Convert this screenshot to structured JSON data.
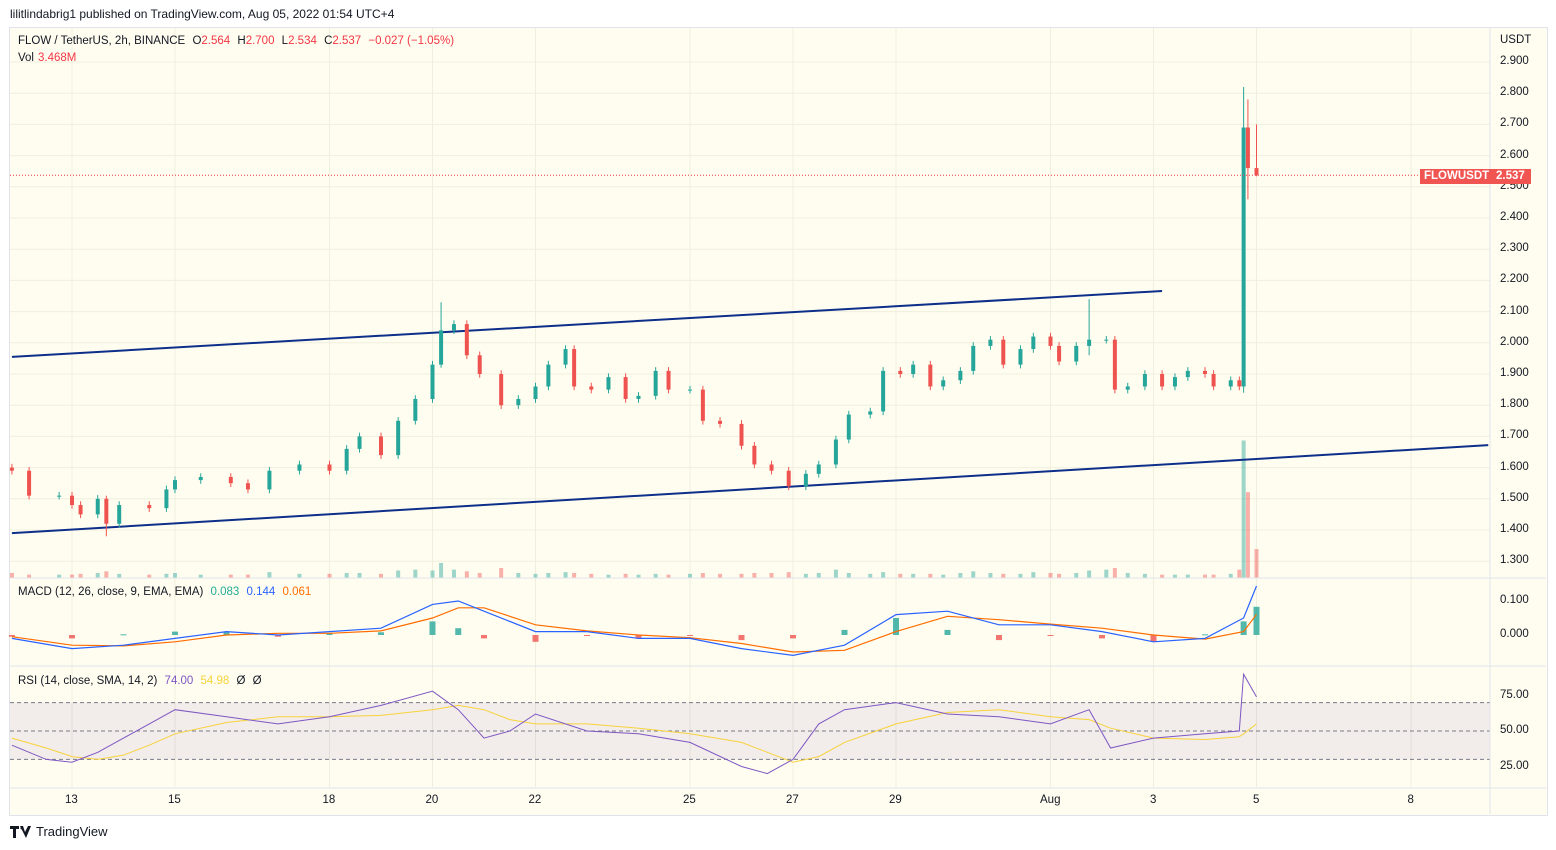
{
  "published": "lilitlindabrig1 published on TradingView.com, Aug 05, 2022 01:54 UTC+4",
  "legend": {
    "symbol": "FLOW / TetherUS, 2h, BINANCE",
    "o_label": "O",
    "o": "2.564",
    "h_label": "H",
    "h": "2.700",
    "l_label": "L",
    "l": "2.534",
    "c_label": "C",
    "c": "2.537",
    "change": "−0.027 (−1.05%)",
    "vol_label": "Vol",
    "vol": "3.468M"
  },
  "macd_legend": {
    "label": "MACD (12, 26, close, 9, EMA, EMA)",
    "hist": "0.083",
    "macd": "0.144",
    "signal": "0.061"
  },
  "rsi_legend": {
    "label": "RSI (14, close, SMA, 14, 2)",
    "rsi": "74.00",
    "sma": "54.98",
    "e1": "Ø",
    "e2": "Ø"
  },
  "price_axis": {
    "unit": "USDT",
    "ticks": [
      "2.900",
      "2.800",
      "2.700",
      "2.600",
      "2.500",
      "2.400",
      "2.300",
      "2.200",
      "2.100",
      "2.000",
      "1.900",
      "1.800",
      "1.700",
      "1.600",
      "1.500",
      "1.400",
      "1.300"
    ]
  },
  "last_price": {
    "symbol": "FLOWUSDT",
    "value": "2.537"
  },
  "macd_axis": {
    "ticks": [
      "0.100",
      "0.000"
    ]
  },
  "rsi_axis": {
    "ticks": [
      "75.00",
      "50.00",
      "25.00"
    ],
    "band": [
      30,
      70
    ]
  },
  "time_axis": [
    {
      "label": "13",
      "date": "07-13"
    },
    {
      "label": "15",
      "date": "07-15"
    },
    {
      "label": "18",
      "date": "07-18"
    },
    {
      "label": "20",
      "date": "07-20"
    },
    {
      "label": "22",
      "date": "07-22"
    },
    {
      "label": "25",
      "date": "07-25"
    },
    {
      "label": "27",
      "date": "07-27"
    },
    {
      "label": "29",
      "date": "07-29"
    },
    {
      "label": "Aug",
      "date": "08-01"
    },
    {
      "label": "3",
      "date": "08-03"
    },
    {
      "label": "5",
      "date": "08-05"
    },
    {
      "label": "8",
      "date": "08-08"
    }
  ],
  "footer": {
    "brand": "TradingView"
  },
  "colors": {
    "up": "#26a69a",
    "down": "#ef5350",
    "trendline": "#0d2f8a",
    "macd": "#2962ff",
    "signal": "#ff6d00",
    "rsi": "#7e57c2",
    "rsi_sma": "#f7d33b",
    "background": "#fffdf0"
  },
  "chart_data": {
    "type": "candlestick",
    "symbol": "FLOWUSDT",
    "interval": "2h",
    "ylim": [
      1.25,
      2.95
    ],
    "candles": [
      [
        "07-11 20:00",
        1.59,
        0.6
      ],
      [
        "07-12 04:00",
        1.51,
        0.4
      ],
      [
        "07-12 18:00",
        1.51,
        0.4
      ],
      [
        "07-13 00:00",
        1.48,
        0.4
      ],
      [
        "07-13 04:00",
        1.45,
        0.5
      ],
      [
        "07-13 12:00",
        1.5,
        0.6
      ],
      [
        "07-13 16:00",
        1.42,
        0.8,
        1.51,
        1.38
      ],
      [
        "07-13 22:00",
        1.48,
        0.5
      ],
      [
        "07-14 12:00",
        1.47,
        0.4
      ],
      [
        "07-14 20:00",
        1.53,
        0.5
      ],
      [
        "07-15 00:00",
        1.56,
        0.6
      ],
      [
        "07-15 12:00",
        1.57,
        0.4
      ],
      [
        "07-16 02:00",
        1.55,
        0.4
      ],
      [
        "07-16 10:00",
        1.53,
        0.4
      ],
      [
        "07-16 20:00",
        1.59,
        0.7
      ],
      [
        "07-17 10:00",
        1.61,
        0.5
      ],
      [
        "07-18 00:00",
        1.59,
        0.5
      ],
      [
        "07-18 08:00",
        1.66,
        0.6
      ],
      [
        "07-18 14:00",
        1.7,
        0.6
      ],
      [
        "07-19 00:00",
        1.64,
        0.5
      ],
      [
        "07-19 08:00",
        1.75,
        0.9
      ],
      [
        "07-19 16:00",
        1.82,
        1.0
      ],
      [
        "07-20 00:00",
        1.93,
        0.9
      ],
      [
        "07-20 04:00",
        2.04,
        1.8,
        2.13,
        1.92
      ],
      [
        "07-20 10:00",
        2.06,
        1.0
      ],
      [
        "07-20 16:00",
        1.96,
        0.8
      ],
      [
        "07-20 22:00",
        1.9,
        0.6
      ],
      [
        "07-21 08:00",
        1.8,
        1.2
      ],
      [
        "07-21 16:00",
        1.82,
        0.6
      ],
      [
        "07-22 00:00",
        1.86,
        0.5
      ],
      [
        "07-22 06:00",
        1.93,
        0.6
      ],
      [
        "07-22 14:00",
        1.98,
        0.7
      ],
      [
        "07-22 18:00",
        1.86,
        0.6
      ],
      [
        "07-23 02:00",
        1.85,
        0.5
      ],
      [
        "07-23 10:00",
        1.89,
        0.4
      ],
      [
        "07-23 18:00",
        1.82,
        0.5
      ],
      [
        "07-24 00:00",
        1.83,
        0.4
      ],
      [
        "07-24 08:00",
        1.91,
        0.5
      ],
      [
        "07-24 14:00",
        1.85,
        0.4
      ],
      [
        "07-25 00:00",
        1.85,
        0.5
      ],
      [
        "07-25 06:00",
        1.75,
        0.6
      ],
      [
        "07-25 14:00",
        1.74,
        0.5
      ],
      [
        "07-26 00:00",
        1.67,
        0.5
      ],
      [
        "07-26 06:00",
        1.61,
        0.6
      ],
      [
        "07-26 14:00",
        1.59,
        0.6
      ],
      [
        "07-26 22:00",
        1.54,
        0.7
      ],
      [
        "07-27 06:00",
        1.58,
        0.5
      ],
      [
        "07-27 12:00",
        1.61,
        0.6
      ],
      [
        "07-27 20:00",
        1.69,
        1.0
      ],
      [
        "07-28 02:00",
        1.77,
        0.6
      ],
      [
        "07-28 12:00",
        1.78,
        0.5
      ],
      [
        "07-28 18:00",
        1.91,
        0.7
      ],
      [
        "07-29 02:00",
        1.9,
        0.5
      ],
      [
        "07-29 08:00",
        1.93,
        0.5
      ],
      [
        "07-29 16:00",
        1.86,
        0.5
      ],
      [
        "07-29 22:00",
        1.88,
        0.4
      ],
      [
        "07-30 06:00",
        1.91,
        0.6
      ],
      [
        "07-30 12:00",
        1.99,
        0.8
      ],
      [
        "07-30 20:00",
        2.01,
        0.6
      ],
      [
        "07-31 02:00",
        1.93,
        0.5
      ],
      [
        "07-31 10:00",
        1.98,
        0.5
      ],
      [
        "07-31 16:00",
        2.02,
        0.7
      ],
      [
        "08-01 00:00",
        1.99,
        0.6
      ],
      [
        "08-01 04:00",
        1.94,
        0.5
      ],
      [
        "08-01 12:00",
        1.99,
        0.6
      ],
      [
        "08-01 18:00",
        2.01,
        0.9,
        2.14,
        1.96
      ],
      [
        "08-02 02:00",
        2.01,
        1.0
      ],
      [
        "08-02 06:00",
        1.85,
        1.2
      ],
      [
        "08-02 12:00",
        1.86,
        0.6
      ],
      [
        "08-02 20:00",
        1.9,
        0.5
      ],
      [
        "08-03 04:00",
        1.86,
        0.4
      ],
      [
        "08-03 10:00",
        1.89,
        0.4
      ],
      [
        "08-03 16:00",
        1.91,
        0.4
      ],
      [
        "08-04 00:00",
        1.9,
        0.4
      ],
      [
        "08-04 04:00",
        1.86,
        0.4
      ],
      [
        "08-04 12:00",
        1.88,
        0.5
      ],
      [
        "08-04 16:00",
        1.86,
        1.0
      ],
      [
        "08-04 18:00",
        2.69,
        16.5,
        2.82,
        1.84
      ],
      [
        "08-04 20:00",
        2.56,
        10.3,
        2.78,
        2.46
      ],
      [
        "08-05 00:00",
        2.537,
        3.468,
        2.7,
        2.534
      ]
    ],
    "trendlines": [
      {
        "from": [
          "07-11 20:00",
          1.955
        ],
        "to": [
          "08-03 04:00",
          2.166
        ]
      },
      {
        "from": [
          "07-11 20:00",
          1.39
        ],
        "to": [
          "08-09 12:00",
          1.672
        ]
      }
    ],
    "macd": {
      "dates": [
        "07-11 20:00",
        "07-13 00:00",
        "07-14 00:00",
        "07-15 00:00",
        "07-16 00:00",
        "07-17 00:00",
        "07-18 00:00",
        "07-19 00:00",
        "07-20 00:00",
        "07-20 12:00",
        "07-21 00:00",
        "07-22 00:00",
        "07-23 00:00",
        "07-24 00:00",
        "07-25 00:00",
        "07-26 00:00",
        "07-27 00:00",
        "07-28 00:00",
        "07-29 00:00",
        "07-30 00:00",
        "07-31 00:00",
        "08-01 00:00",
        "08-02 00:00",
        "08-03 00:00",
        "08-04 00:00",
        "08-04 18:00",
        "08-05 00:00"
      ],
      "macd": [
        -0.01,
        -0.04,
        -0.03,
        -0.01,
        0.01,
        0.0,
        0.01,
        0.02,
        0.09,
        0.1,
        0.07,
        0.01,
        0.01,
        -0.01,
        -0.01,
        -0.04,
        -0.06,
        -0.03,
        0.06,
        0.07,
        0.03,
        0.03,
        0.01,
        -0.02,
        -0.01,
        0.05,
        0.144
      ],
      "signal": [
        -0.005,
        -0.03,
        -0.032,
        -0.02,
        0.0,
        0.005,
        0.005,
        0.012,
        0.05,
        0.08,
        0.08,
        0.03,
        0.012,
        0.0,
        -0.008,
        -0.025,
        -0.05,
        -0.045,
        0.01,
        0.055,
        0.045,
        0.032,
        0.02,
        0.0,
        -0.012,
        0.01,
        0.061
      ]
    },
    "rsi": {
      "dates": [
        "07-11 20:00",
        "07-12 12:00",
        "07-13 00:00",
        "07-13 12:00",
        "07-14 00:00",
        "07-14 12:00",
        "07-15 00:00",
        "07-16 00:00",
        "07-17 00:00",
        "07-18 00:00",
        "07-19 00:00",
        "07-20 00:00",
        "07-20 12:00",
        "07-21 00:00",
        "07-21 12:00",
        "07-22 00:00",
        "07-23 00:00",
        "07-24 00:00",
        "07-25 00:00",
        "07-26 00:00",
        "07-26 12:00",
        "07-27 00:00",
        "07-27 12:00",
        "07-28 00:00",
        "07-29 00:00",
        "07-30 00:00",
        "07-31 00:00",
        "08-01 00:00",
        "08-01 18:00",
        "08-02 04:00",
        "08-03 00:00",
        "08-04 00:00",
        "08-04 16:00",
        "08-04 18:00",
        "08-05 00:00"
      ],
      "rsi": [
        40,
        30,
        28,
        35,
        45,
        55,
        65,
        60,
        55,
        60,
        68,
        78,
        65,
        45,
        50,
        62,
        50,
        48,
        42,
        25,
        20,
        30,
        55,
        65,
        70,
        62,
        60,
        55,
        65,
        38,
        45,
        48,
        50,
        90,
        74
      ],
      "sma": [
        45,
        38,
        32,
        30,
        33,
        40,
        48,
        56,
        60,
        60,
        61,
        65,
        68,
        65,
        58,
        55,
        55,
        52,
        48,
        42,
        35,
        28,
        32,
        42,
        55,
        63,
        65,
        60,
        58,
        52,
        45,
        44,
        46,
        48,
        54.98
      ]
    }
  }
}
